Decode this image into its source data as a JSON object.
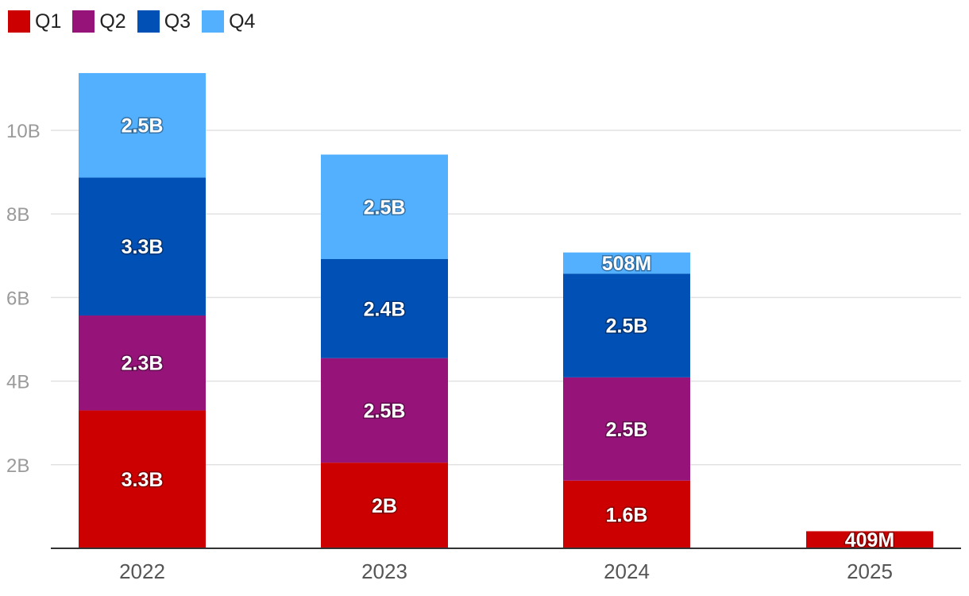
{
  "chart_data": {
    "type": "bar",
    "stacked": true,
    "categories": [
      "2022",
      "2023",
      "2024",
      "2025"
    ],
    "series": [
      {
        "name": "Q1",
        "color": "#cc0000",
        "values": [
          3.3,
          2.05,
          1.62,
          0.409
        ],
        "labels": [
          "3.3B",
          "2B",
          "1.6B",
          "409M"
        ]
      },
      {
        "name": "Q2",
        "color": "#961479",
        "values": [
          2.27,
          2.5,
          2.47,
          null
        ],
        "labels": [
          "2.3B",
          "2.5B",
          "2.5B",
          ""
        ]
      },
      {
        "name": "Q3",
        "color": "#0050b5",
        "values": [
          3.3,
          2.37,
          2.48,
          null
        ],
        "labels": [
          "3.3B",
          "2.4B",
          "2.5B",
          ""
        ]
      },
      {
        "name": "Q4",
        "color": "#52b0ff",
        "values": [
          2.5,
          2.5,
          0.508,
          null
        ],
        "labels": [
          "2.5B",
          "2.5B",
          "508M",
          ""
        ]
      }
    ],
    "ylim": [
      0,
      11.7
    ],
    "yticks": [
      2,
      4,
      6,
      8,
      10
    ],
    "ytick_labels": [
      "2B",
      "4B",
      "6B",
      "8B",
      "10B"
    ],
    "grid": true,
    "legend_position": "top-left",
    "title": "",
    "xlabel": "",
    "ylabel": ""
  }
}
